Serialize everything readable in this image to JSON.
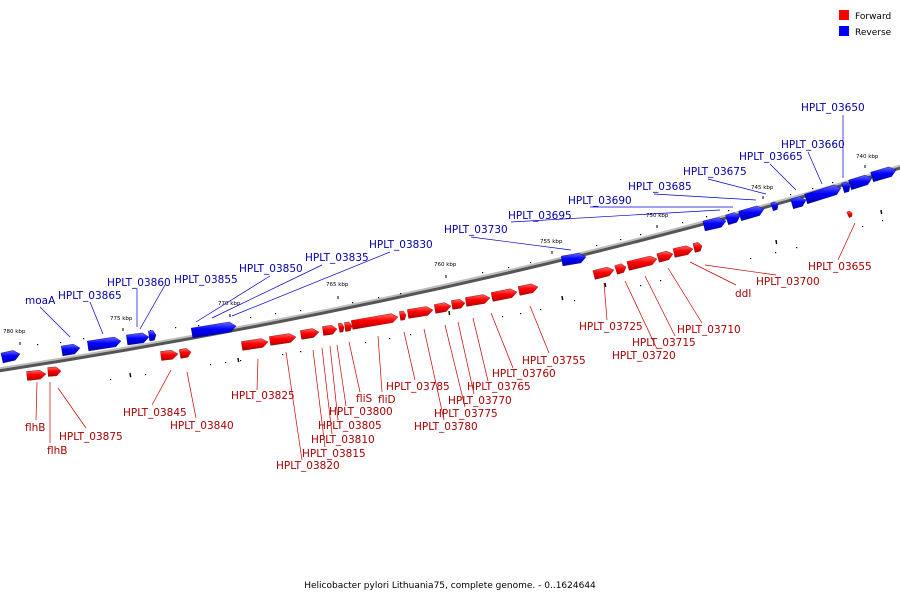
{
  "caption": "Helicobacter pylori Lithuania75, complete genome. - 0..1624644",
  "legend": {
    "forward": {
      "label": "Forward",
      "color": "#ff0000"
    },
    "reverse": {
      "label": "Reverse",
      "color": "#0000ff"
    }
  },
  "ticks": [
    "780 kbp",
    "775 kbp",
    "770 kbp",
    "765 kbp",
    "760 kbp",
    "755 kbp",
    "750 kbp",
    "745 kbp",
    "740 kbp"
  ],
  "reverse_labels": [
    "moaA",
    "HPLT_03865",
    "HPLT_03860",
    "HPLT_03855",
    "HPLT_03850",
    "HPLT_03835",
    "HPLT_03830",
    "HPLT_03730",
    "HPLT_03695",
    "HPLT_03690",
    "HPLT_03685",
    "HPLT_03675",
    "HPLT_03665",
    "HPLT_03660",
    "HPLT_03650"
  ],
  "forward_labels": [
    "flhB",
    "flhB",
    "HPLT_03875",
    "HPLT_03845",
    "HPLT_03840",
    "HPLT_03825",
    "HPLT_03820",
    "HPLT_03815",
    "HPLT_03810",
    "HPLT_03805",
    "HPLT_03800",
    "fliS",
    "fliD",
    "HPLT_03785",
    "HPLT_03780",
    "HPLT_03775",
    "HPLT_03770",
    "HPLT_03765",
    "HPLT_03760",
    "HPLT_03755",
    "HPLT_03725",
    "HPLT_03720",
    "HPLT_03715",
    "HPLT_03710",
    "ddl",
    "HPLT_03700",
    "HPLT_03655"
  ]
}
